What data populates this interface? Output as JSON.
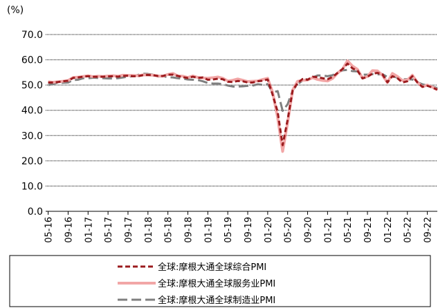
{
  "chart_data": {
    "type": "line",
    "ylabel": "(%)",
    "ylim": [
      0,
      70
    ],
    "yticks": [
      "0.0",
      "10.0",
      "20.0",
      "30.0",
      "40.0",
      "50.0",
      "60.0",
      "70.0"
    ],
    "xtick_labels": [
      "05-16",
      "09-16",
      "01-17",
      "05-17",
      "09-17",
      "01-18",
      "05-18",
      "09-18",
      "01-19",
      "05-19",
      "09-19",
      "01-20",
      "05-20",
      "09-20",
      "01-21",
      "05-21",
      "09-21",
      "01-22",
      "05-22",
      "09-22"
    ],
    "x": [
      "05-16",
      "06-16",
      "07-16",
      "08-16",
      "09-16",
      "10-16",
      "11-16",
      "12-16",
      "01-17",
      "02-17",
      "03-17",
      "04-17",
      "05-17",
      "06-17",
      "07-17",
      "08-17",
      "09-17",
      "10-17",
      "11-17",
      "12-17",
      "01-18",
      "02-18",
      "03-18",
      "04-18",
      "05-18",
      "06-18",
      "07-18",
      "08-18",
      "09-18",
      "10-18",
      "11-18",
      "12-18",
      "01-19",
      "02-19",
      "03-19",
      "04-19",
      "05-19",
      "06-19",
      "07-19",
      "08-19",
      "09-19",
      "10-19",
      "11-19",
      "12-19",
      "01-20",
      "02-20",
      "03-20",
      "04-20",
      "05-20",
      "06-20",
      "07-20",
      "08-20",
      "09-20",
      "10-20",
      "11-20",
      "12-20",
      "01-21",
      "02-21",
      "03-21",
      "04-21",
      "05-21",
      "06-21",
      "07-21",
      "08-21",
      "09-21",
      "10-21",
      "11-21",
      "12-21",
      "01-22",
      "02-22",
      "03-22",
      "04-22",
      "05-22",
      "06-22",
      "07-22",
      "08-22",
      "09-22",
      "10-22",
      "11-22"
    ],
    "grid": "horizontal",
    "legend_position": "bottom",
    "series": [
      {
        "name": "全球:摩根大通全球综合PMI",
        "color": "#9b1b1e",
        "style": "dashed",
        "values": [
          51.0,
          51.0,
          51.2,
          51.5,
          51.7,
          52.8,
          53.0,
          53.3,
          53.5,
          53.3,
          53.3,
          53.3,
          53.4,
          53.5,
          53.3,
          53.6,
          53.7,
          53.5,
          53.5,
          53.9,
          54.0,
          53.9,
          53.6,
          53.6,
          54.1,
          54.1,
          53.6,
          53.1,
          52.8,
          53.3,
          52.8,
          53.0,
          52.1,
          52.2,
          52.5,
          52.3,
          51.3,
          51.2,
          51.6,
          51.5,
          51.0,
          51.0,
          51.5,
          51.7,
          52.2,
          46.1,
          39.4,
          26.2,
          36.3,
          47.8,
          50.8,
          52.4,
          52.1,
          53.3,
          53.1,
          52.7,
          52.3,
          53.2,
          54.8,
          56.3,
          58.5,
          56.6,
          55.7,
          52.6,
          53.3,
          54.5,
          54.8,
          54.3,
          51.1,
          53.5,
          52.7,
          51.0,
          51.5,
          53.5,
          51.1,
          49.3,
          49.7,
          49.0,
          48.2
        ]
      },
      {
        "name": "全球:摩根大通全球服务业PMI",
        "color": "#f2a6a6",
        "style": "solid",
        "values": [
          51.3,
          51.1,
          51.3,
          51.5,
          51.8,
          53.0,
          53.1,
          53.4,
          53.7,
          53.3,
          53.5,
          53.4,
          53.6,
          53.7,
          53.5,
          53.9,
          53.8,
          53.8,
          53.7,
          54.0,
          54.0,
          53.9,
          53.6,
          53.5,
          54.2,
          54.6,
          53.6,
          53.5,
          53.0,
          53.6,
          53.0,
          52.8,
          52.7,
          52.9,
          53.2,
          52.7,
          51.6,
          51.9,
          52.4,
          51.9,
          51.4,
          51.5,
          51.6,
          52.2,
          52.7,
          47.1,
          37.1,
          23.7,
          35.1,
          48.0,
          51.5,
          51.9,
          52.0,
          52.9,
          52.2,
          51.8,
          51.6,
          52.6,
          54.7,
          56.3,
          59.6,
          57.5,
          56.2,
          52.8,
          53.4,
          55.7,
          55.6,
          53.9,
          51.0,
          54.6,
          53.4,
          51.8,
          52.0,
          53.9,
          51.1,
          49.3,
          50.0,
          49.2,
          48.1
        ]
      },
      {
        "name": "全球:摩根大通全球制造业PMI",
        "color": "#7f7f7f",
        "style": "dashed",
        "values": [
          50.0,
          50.4,
          51.0,
          50.9,
          51.0,
          52.0,
          52.1,
          52.7,
          52.7,
          52.9,
          52.8,
          52.7,
          52.6,
          52.6,
          52.7,
          53.0,
          53.3,
          53.5,
          54.0,
          54.5,
          54.4,
          54.1,
          53.4,
          53.5,
          53.1,
          53.0,
          52.7,
          52.5,
          52.2,
          52.1,
          52.0,
          51.5,
          50.8,
          50.6,
          50.6,
          50.4,
          49.8,
          49.4,
          49.4,
          49.5,
          49.7,
          49.8,
          50.3,
          50.1,
          50.4,
          47.1,
          47.6,
          39.8,
          42.4,
          47.9,
          50.3,
          51.8,
          52.4,
          53.0,
          53.8,
          53.8,
          53.5,
          53.9,
          55.0,
          55.8,
          56.0,
          55.5,
          55.4,
          54.1,
          54.1,
          54.3,
          54.2,
          54.3,
          53.2,
          53.6,
          52.9,
          52.3,
          52.3,
          52.2,
          51.1,
          50.3,
          49.8,
          49.4,
          48.8
        ]
      }
    ]
  }
}
